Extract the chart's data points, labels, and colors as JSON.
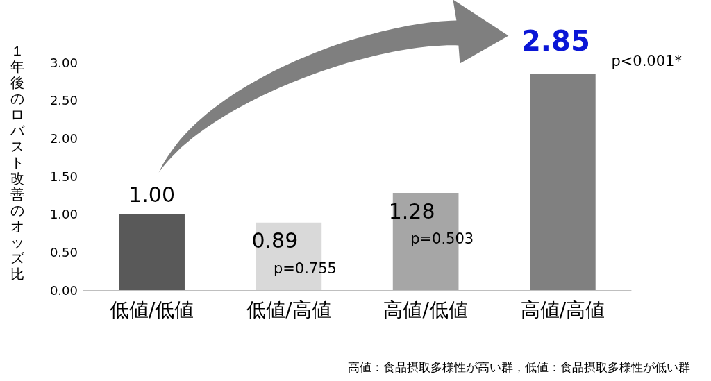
{
  "chart_data": {
    "type": "bar",
    "ylabel": "１年後のロバスト改善のオッズ比",
    "categories": [
      "低値/低値",
      "低値/高値",
      "高値/低値",
      "高値/高値"
    ],
    "values": [
      1.0,
      0.89,
      1.28,
      2.85
    ],
    "colors": [
      "#595959",
      "#d9d9d9",
      "#a6a6a6",
      "#808080"
    ],
    "value_labels": [
      "1.00",
      "0.89",
      "1.28",
      "2.85"
    ],
    "ylim": [
      0,
      3
    ],
    "yticks": [
      {
        "value": 0,
        "label": "0.00"
      },
      {
        "value": 0.5,
        "label": "0.50"
      },
      {
        "value": 1,
        "label": "1.00"
      },
      {
        "value": 1.5,
        "label": "1.50"
      },
      {
        "value": 2,
        "label": "2.00"
      },
      {
        "value": 2.5,
        "label": "2.50"
      },
      {
        "value": 3,
        "label": "3.00"
      }
    ],
    "grid": false,
    "annotations": [
      "p=0.755",
      "p=0.503",
      "p<0.001*",
      "高値：食品摂取多様性が高い群，低値：食品摂取多様性が低い群"
    ]
  }
}
